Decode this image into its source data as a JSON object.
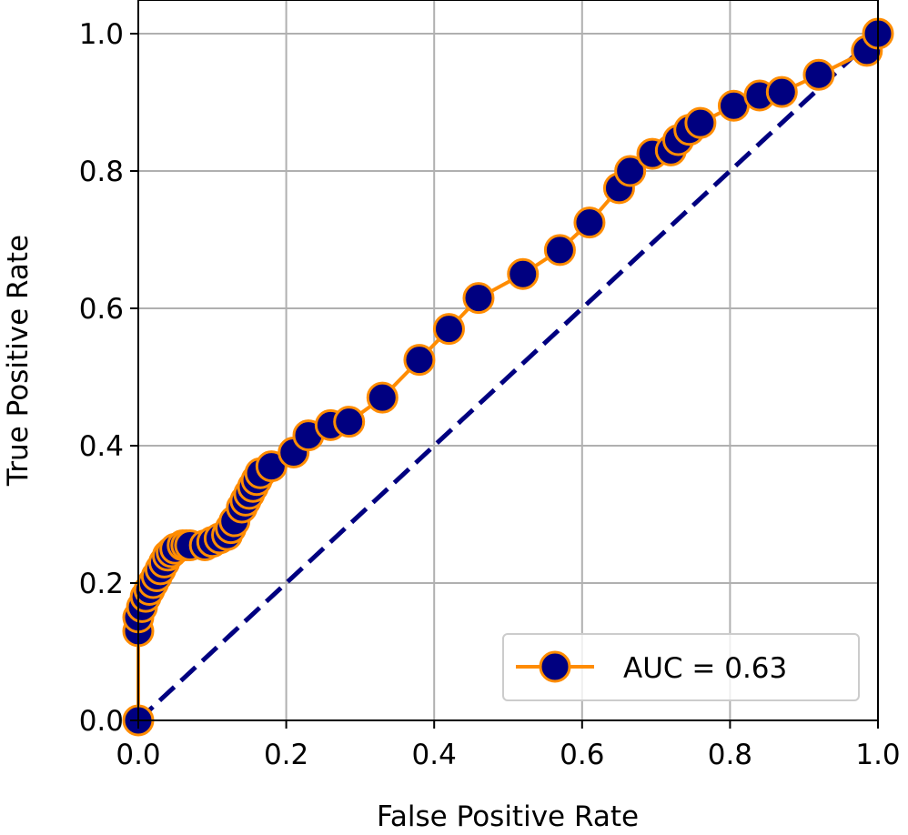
{
  "chart_data": {
    "type": "line",
    "title": "",
    "xlabel": "False Positive Rate",
    "ylabel": "True Positive Rate",
    "xlim": [
      0.0,
      1.0
    ],
    "ylim": [
      0.0,
      1.0
    ],
    "xticks": [
      "0.0",
      "0.2",
      "0.4",
      "0.6",
      "0.8",
      "1.0"
    ],
    "yticks": [
      "0.0",
      "0.2",
      "0.4",
      "0.6",
      "0.8",
      "1.0"
    ],
    "grid": true,
    "legend_position": "lower-right",
    "series": [
      {
        "name": "AUC = 0.63",
        "line_color": "#ff8c00",
        "marker_face": "#000080",
        "marker_edge": "#ff8c00",
        "x": [
          0.0,
          0.0,
          0.0,
          0.005,
          0.01,
          0.015,
          0.02,
          0.025,
          0.03,
          0.035,
          0.04,
          0.045,
          0.05,
          0.06,
          0.065,
          0.07,
          0.09,
          0.1,
          0.11,
          0.12,
          0.125,
          0.13,
          0.14,
          0.145,
          0.15,
          0.155,
          0.16,
          0.165,
          0.18,
          0.21,
          0.23,
          0.26,
          0.285,
          0.33,
          0.38,
          0.42,
          0.46,
          0.52,
          0.57,
          0.61,
          0.65,
          0.665,
          0.695,
          0.72,
          0.73,
          0.745,
          0.76,
          0.805,
          0.84,
          0.87,
          0.92,
          0.985,
          1.0
        ],
        "y": [
          0.0,
          0.13,
          0.15,
          0.165,
          0.18,
          0.19,
          0.2,
          0.21,
          0.22,
          0.23,
          0.24,
          0.245,
          0.25,
          0.255,
          0.255,
          0.255,
          0.255,
          0.26,
          0.265,
          0.27,
          0.28,
          0.29,
          0.31,
          0.32,
          0.33,
          0.34,
          0.35,
          0.36,
          0.37,
          0.39,
          0.415,
          0.43,
          0.435,
          0.47,
          0.525,
          0.57,
          0.615,
          0.65,
          0.685,
          0.725,
          0.775,
          0.8,
          0.825,
          0.83,
          0.845,
          0.86,
          0.87,
          0.895,
          0.91,
          0.915,
          0.94,
          0.975,
          1.0
        ]
      }
    ],
    "reference_line": {
      "x": [
        0.0,
        1.0
      ],
      "y": [
        0.0,
        1.0
      ],
      "color": "#000080",
      "style": "dashed"
    }
  }
}
